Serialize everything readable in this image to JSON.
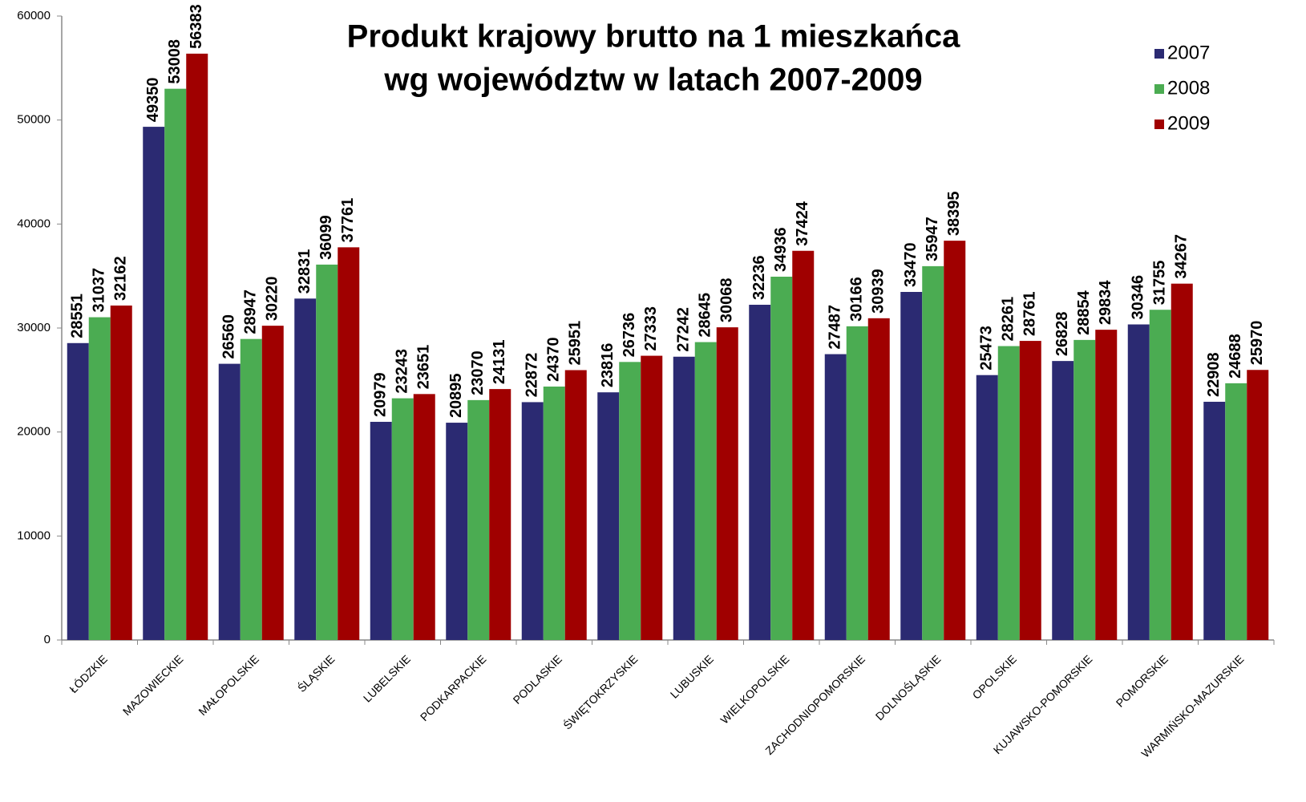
{
  "chart_data": {
    "type": "bar",
    "title_lines": [
      "Produkt krajowy brutto na 1 mieszkańca",
      "wg województw w latach 2007-2009"
    ],
    "categories": [
      "ŁÓDZKIE",
      "MAZOWIECKIE",
      "MAŁOPOLSKIE",
      "ŚLĄSKIE",
      "LUBELSKIE",
      "PODKARPACKIE",
      "PODLASKIE",
      "ŚWIĘTOKRZYSKIE",
      "LUBUSKIE",
      "WIELKOPOLSKIE",
      "ZACHODNIOPOMORSKIE",
      "DOLNOŚLĄSKIE",
      "OPOLSKIE",
      "KUJAWSKO-POMORSKIE",
      "POMORSKIE",
      "WARMIŃSKO-MAZURSKIE"
    ],
    "series": [
      {
        "name": "2007",
        "color": "#2b2a72",
        "values": [
          28551,
          49350,
          26560,
          32831,
          20979,
          20895,
          22872,
          23816,
          27242,
          32236,
          27487,
          33470,
          25473,
          26828,
          30346,
          22908
        ]
      },
      {
        "name": "2008",
        "color": "#4bac52",
        "values": [
          31037,
          53008,
          28947,
          36099,
          23243,
          23070,
          24370,
          26736,
          28645,
          34936,
          30166,
          35947,
          28261,
          28854,
          31755,
          24688
        ]
      },
      {
        "name": "2009",
        "color": "#a00000",
        "values": [
          32162,
          56383,
          30220,
          37761,
          23651,
          24131,
          25951,
          27333,
          30068,
          37424,
          30939,
          38395,
          28761,
          29834,
          34267,
          25970
        ]
      }
    ],
    "ylim": [
      0,
      60000
    ],
    "yticks": [
      0,
      10000,
      20000,
      30000,
      40000,
      50000,
      60000
    ],
    "legend": "upper right"
  }
}
